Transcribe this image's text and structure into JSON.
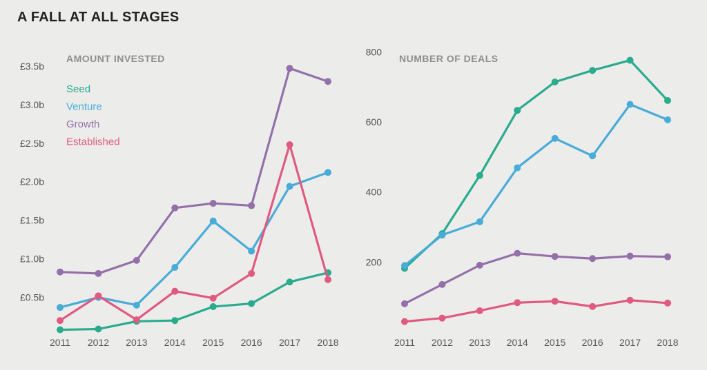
{
  "title": "A FALL AT ALL STAGES",
  "chart_data": [
    {
      "type": "line",
      "title": "AMOUNT INVESTED",
      "x": [
        "2011",
        "2012",
        "2013",
        "2014",
        "2015",
        "2016",
        "2017",
        "2018"
      ],
      "y_ticks": [
        "£0.5b",
        "£1.0b",
        "£1.5b",
        "£2.0b",
        "£2.5b",
        "£3.0b",
        "£3.5b"
      ],
      "y_tick_values": [
        0.5,
        1.0,
        1.5,
        2.0,
        2.5,
        3.0,
        3.5
      ],
      "ylim": [
        0.05,
        3.82
      ],
      "legend_position": "top-left",
      "series": [
        {
          "name": "Seed",
          "color": "#2aab8e",
          "values": [
            0.08,
            0.09,
            0.19,
            0.2,
            0.38,
            0.42,
            0.7,
            0.82
          ]
        },
        {
          "name": "Venture",
          "color": "#48acd8",
          "values": [
            0.37,
            0.5,
            0.4,
            0.89,
            1.49,
            1.1,
            1.94,
            2.12
          ]
        },
        {
          "name": "Growth",
          "color": "#9470aa",
          "values": [
            0.83,
            0.81,
            0.98,
            1.66,
            1.72,
            1.69,
            3.47,
            3.3
          ]
        },
        {
          "name": "Established",
          "color": "#e05a80",
          "values": [
            0.2,
            0.52,
            0.21,
            0.58,
            0.49,
            0.81,
            2.48,
            0.73
          ]
        }
      ]
    },
    {
      "type": "line",
      "title": "NUMBER OF DEALS",
      "x": [
        "2011",
        "2012",
        "2013",
        "2014",
        "2015",
        "2016",
        "2017",
        "2018"
      ],
      "y_ticks": [
        "200",
        "400",
        "600",
        "800"
      ],
      "y_tick_values": [
        200,
        400,
        600,
        800
      ],
      "ylim": [
        0,
        830
      ],
      "series": [
        {
          "name": "Seed",
          "color": "#2aab8e",
          "values": [
            182,
            281,
            447,
            633,
            714,
            747,
            776,
            661
          ]
        },
        {
          "name": "Venture",
          "color": "#48acd8",
          "values": [
            190,
            277,
            315,
            469,
            553,
            503,
            650,
            606
          ]
        },
        {
          "name": "Growth",
          "color": "#9470aa",
          "values": [
            81,
            136,
            191,
            225,
            216,
            210,
            217,
            215
          ]
        },
        {
          "name": "Established",
          "color": "#e05a80",
          "values": [
            30,
            40,
            61,
            84,
            88,
            73,
            91,
            83
          ]
        }
      ]
    }
  ]
}
